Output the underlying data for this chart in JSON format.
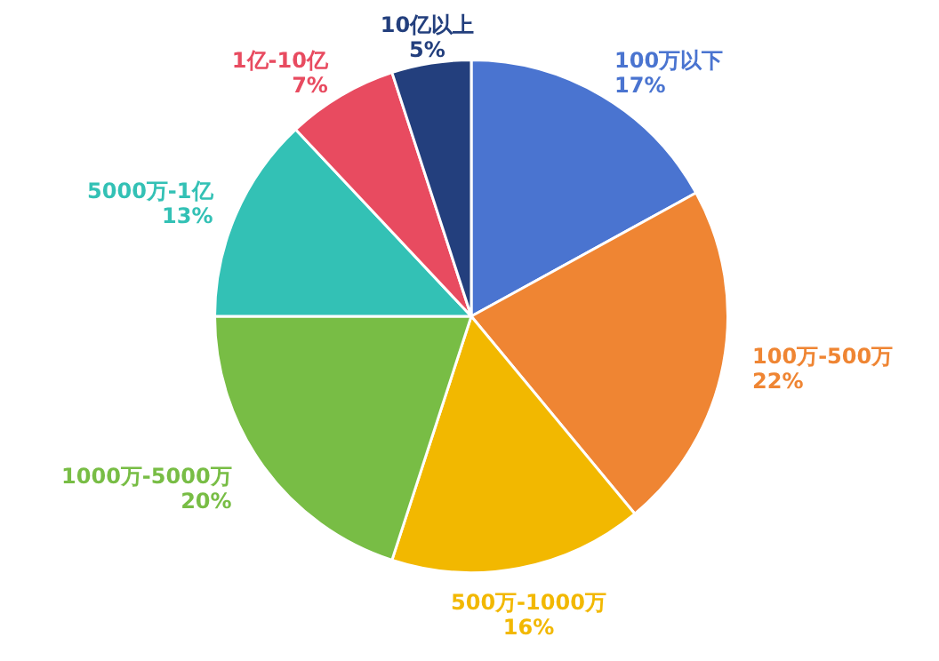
{
  "chart_data": {
    "type": "pie",
    "categories": [
      "100万以下",
      "100万-500万",
      "500万-1000万",
      "1000万-5000万",
      "5000万-1亿",
      "1亿-10亿",
      "10亿以上"
    ],
    "values": [
      17,
      22,
      16,
      20,
      13,
      7,
      5
    ],
    "value_labels": [
      "17%",
      "22%",
      "16%",
      "20%",
      "13%",
      "7%",
      "5%"
    ],
    "colors": [
      "#4a74d0",
      "#ef8533",
      "#f2b800",
      "#78bd45",
      "#33c1b5",
      "#e84b60",
      "#233f7d"
    ]
  }
}
